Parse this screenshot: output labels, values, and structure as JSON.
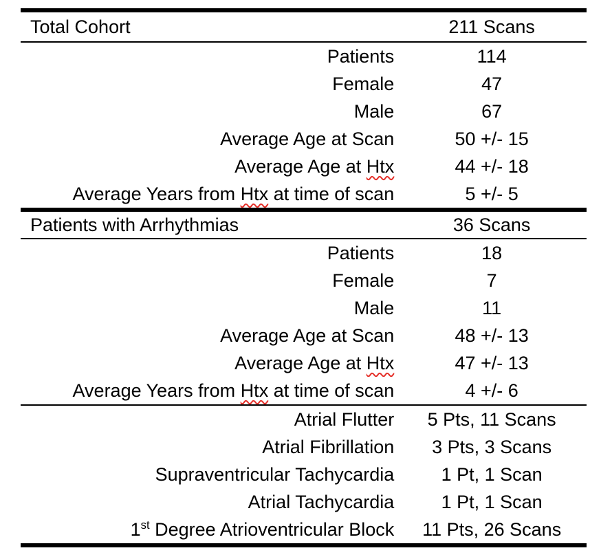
{
  "colors": {
    "text": "#000000",
    "rule": "#000000",
    "spellcheck_underline": "#e5312b",
    "background": "#ffffff"
  },
  "table": {
    "sections": [
      {
        "header": {
          "label": "Total Cohort",
          "value": "211 Scans"
        },
        "rows": [
          {
            "label": "Patients",
            "value": "114"
          },
          {
            "label": "Female",
            "value": "47"
          },
          {
            "label": "Male",
            "value": "67"
          },
          {
            "label": "Average Age at Scan",
            "value": "50 +/- 15"
          },
          {
            "label_pre": "Average Age at ",
            "label_misspelled": "Htx",
            "label_post": "",
            "value": "44 +/- 18"
          },
          {
            "label_pre": "Average Years from ",
            "label_misspelled": "Htx",
            "label_post": " at time of scan",
            "value": "5 +/- 5"
          }
        ]
      },
      {
        "header": {
          "label": "Patients with Arrhythmias",
          "value": "36 Scans"
        },
        "rows": [
          {
            "label": "Patients",
            "value": "18"
          },
          {
            "label": "Female",
            "value": "7"
          },
          {
            "label": "Male",
            "value": "11"
          },
          {
            "label": "Average Age at Scan",
            "value": "48 +/- 13"
          },
          {
            "label_pre": "Average Age at ",
            "label_misspelled": "Htx",
            "label_post": "",
            "value": "47 +/- 13"
          },
          {
            "label_pre": "Average Years from ",
            "label_misspelled": "Htx",
            "label_post": " at time of scan",
            "value": "4 +/- 6"
          }
        ],
        "subrows": [
          {
            "label": "Atrial Flutter",
            "value": "5 Pts, 11 Scans"
          },
          {
            "label": "Atrial Fibrillation",
            "value": "3 Pts, 3 Scans"
          },
          {
            "label": "Supraventricular Tachycardia",
            "value": "1 Pt, 1 Scan"
          },
          {
            "label": "Atrial Tachycardia",
            "value": "1 Pt, 1 Scan"
          },
          {
            "label_base": "1",
            "label_sup": "st",
            "label_rest": " Degree Atrioventricular Block",
            "value": "11 Pts, 26 Scans"
          }
        ]
      }
    ]
  }
}
